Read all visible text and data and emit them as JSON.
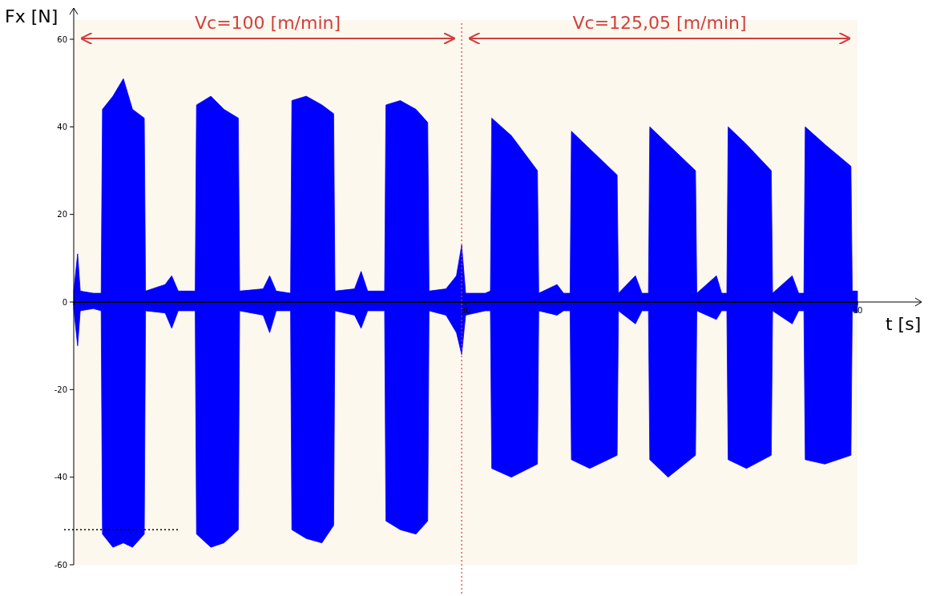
{
  "chart_data": {
    "type": "area",
    "xlabel": "t [s]",
    "ylabel": "Fx [N]",
    "annotations": [
      "Vc=100 [m/min]",
      "Vc=125,05 [m/min]"
    ],
    "x": [
      0,
      0.3,
      0.5,
      1.5,
      2.1,
      2.2,
      3,
      3.8,
      4.5,
      5.4,
      5.5,
      7,
      7.5,
      8,
      9.3,
      9.4,
      10.5,
      11.5,
      12.6,
      12.7,
      14.5,
      15,
      15.5,
      16.6,
      16.7,
      17.8,
      19,
      19.9,
      20,
      21.5,
      22,
      22.5,
      23.8,
      23.9,
      25,
      26.2,
      27.1,
      27.2,
      28.5,
      29.3,
      29.7,
      30,
      31.5,
      31.9,
      32,
      33.5,
      35.5,
      35.6,
      37,
      37.5,
      38,
      38.1,
      39.5,
      41.6,
      41.7,
      43,
      43.5,
      44,
      44.1,
      45.5,
      47.6,
      47.7,
      49.2,
      49.6,
      50,
      50.1,
      51.5,
      53.4,
      53.5,
      55,
      55.5,
      55.9,
      56,
      57.5,
      59.5,
      59.6,
      60
    ],
    "series": [
      {
        "color": "#0000ff",
        "values": [
          2.5,
          11,
          2.5,
          2,
          2,
          44,
          47,
          51,
          44,
          42,
          2.5,
          4,
          6,
          2.5,
          2.5,
          45,
          47,
          44,
          42,
          2.5,
          3,
          6,
          2.5,
          2,
          46,
          47,
          45,
          43,
          2.5,
          3,
          7,
          2.5,
          2.5,
          45,
          46,
          44,
          41,
          2.5,
          3,
          6,
          13,
          2,
          2,
          2.5,
          42,
          38,
          30,
          2,
          4,
          2,
          2,
          39,
          35,
          29,
          2,
          6,
          2,
          2,
          40,
          36,
          30,
          2,
          6,
          2,
          2,
          40,
          36,
          30,
          2,
          6,
          2,
          2,
          40,
          36,
          31,
          2.5,
          2.5
        ]
      },
      {
        "color": "#0000ff",
        "values": [
          -1.5,
          -10,
          -2,
          -1.5,
          -2,
          -53,
          -56,
          -55,
          -56,
          -53,
          -2,
          -2.5,
          -6,
          -2,
          -2,
          -53,
          -56,
          -55,
          -52,
          -2,
          -3,
          -7,
          -2,
          -2,
          -52,
          -54,
          -55,
          -51,
          -2,
          -3,
          -6,
          -2,
          -2,
          -50,
          -52,
          -53,
          -50,
          -2,
          -3,
          -7,
          -12,
          -3,
          -2,
          -2,
          -38,
          -40,
          -37,
          -2,
          -3,
          -2,
          -2,
          -36,
          -38,
          -35,
          -2,
          -5,
          -2,
          -2,
          -36,
          -40,
          -35,
          -2,
          -4,
          -2,
          -2,
          -36,
          -38,
          -35,
          -2,
          -5,
          -2,
          -2,
          -36,
          -37,
          -35,
          -2,
          -2.5
        ]
      }
    ],
    "xlim": [
      0,
      60
    ],
    "xticks": [
      {
        "value": 0,
        "label": null
      },
      {
        "value": 30,
        "label": "30"
      },
      {
        "value": 60,
        "label": "60"
      }
    ],
    "ylim": [
      -60,
      60
    ],
    "yticks": [
      -60,
      -40,
      -20,
      0,
      20,
      40,
      60
    ],
    "ref_lines": [
      {
        "axis": "x",
        "value": 29.7,
        "color": "#d04040",
        "line_style": "dotted"
      },
      {
        "axis": "y",
        "value": -52,
        "color": "#000000",
        "line_style": "dotted"
      }
    ],
    "marker": "none"
  }
}
